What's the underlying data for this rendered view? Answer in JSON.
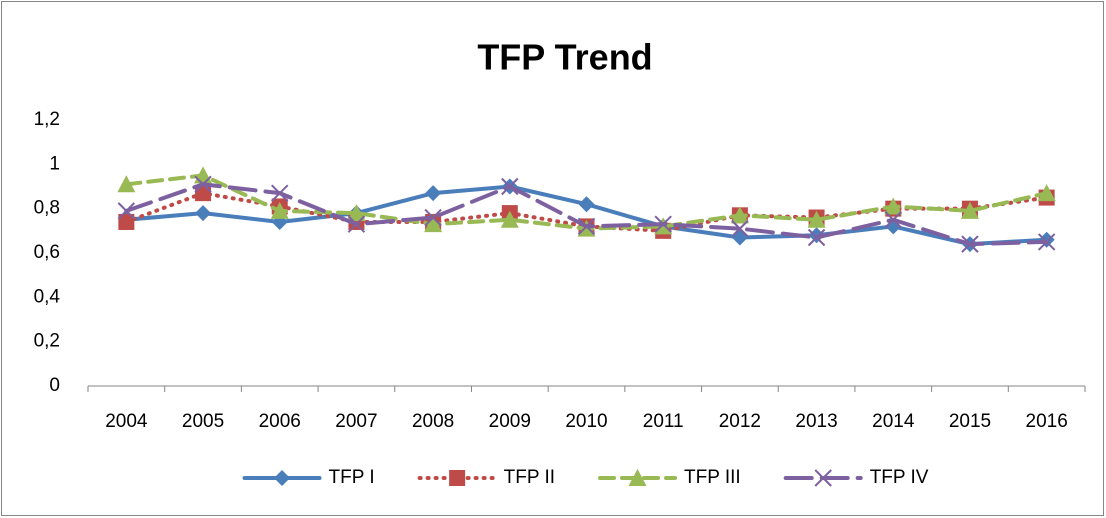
{
  "chart_data": {
    "type": "line",
    "title": "TFP Trend",
    "categories": [
      "2004",
      "2005",
      "2006",
      "2007",
      "2008",
      "2009",
      "2010",
      "2011",
      "2012",
      "2013",
      "2014",
      "2015",
      "2016"
    ],
    "series": [
      {
        "name": "TFP I",
        "color": "#4a7ebb",
        "marker": "diamond",
        "line_style": "solid",
        "values": [
          0.75,
          0.78,
          0.74,
          0.78,
          0.87,
          0.9,
          0.82,
          0.72,
          0.67,
          0.68,
          0.72,
          0.64,
          0.66
        ]
      },
      {
        "name": "TFP II",
        "color": "#be4b48",
        "marker": "square",
        "line_style": "dotted",
        "values": [
          0.74,
          0.87,
          0.81,
          0.74,
          0.74,
          0.78,
          0.72,
          0.7,
          0.77,
          0.76,
          0.8,
          0.8,
          0.85
        ]
      },
      {
        "name": "TFP III",
        "color": "#98b954",
        "marker": "triangle",
        "line_style": "dashed",
        "values": [
          0.91,
          0.95,
          0.79,
          0.78,
          0.73,
          0.75,
          0.71,
          0.72,
          0.77,
          0.75,
          0.81,
          0.79,
          0.87
        ]
      },
      {
        "name": "TFP IV",
        "color": "#7d60a0",
        "marker": "x",
        "line_style": "long-dashed",
        "values": [
          0.79,
          0.91,
          0.87,
          0.73,
          0.76,
          0.9,
          0.72,
          0.73,
          0.71,
          0.67,
          0.75,
          0.64,
          0.65
        ]
      }
    ],
    "ylim": [
      0,
      1.2
    ],
    "yticks": [
      0,
      {
        "value": 0.2,
        "label": "0,2"
      },
      {
        "value": 0.4,
        "label": "0,4"
      },
      {
        "value": 0.6,
        "label": "0,6"
      },
      {
        "value": 0.8,
        "label": "0,8"
      },
      1,
      {
        "value": 1.2,
        "label": "1,2"
      }
    ],
    "grid": false,
    "legend": "bottom"
  }
}
